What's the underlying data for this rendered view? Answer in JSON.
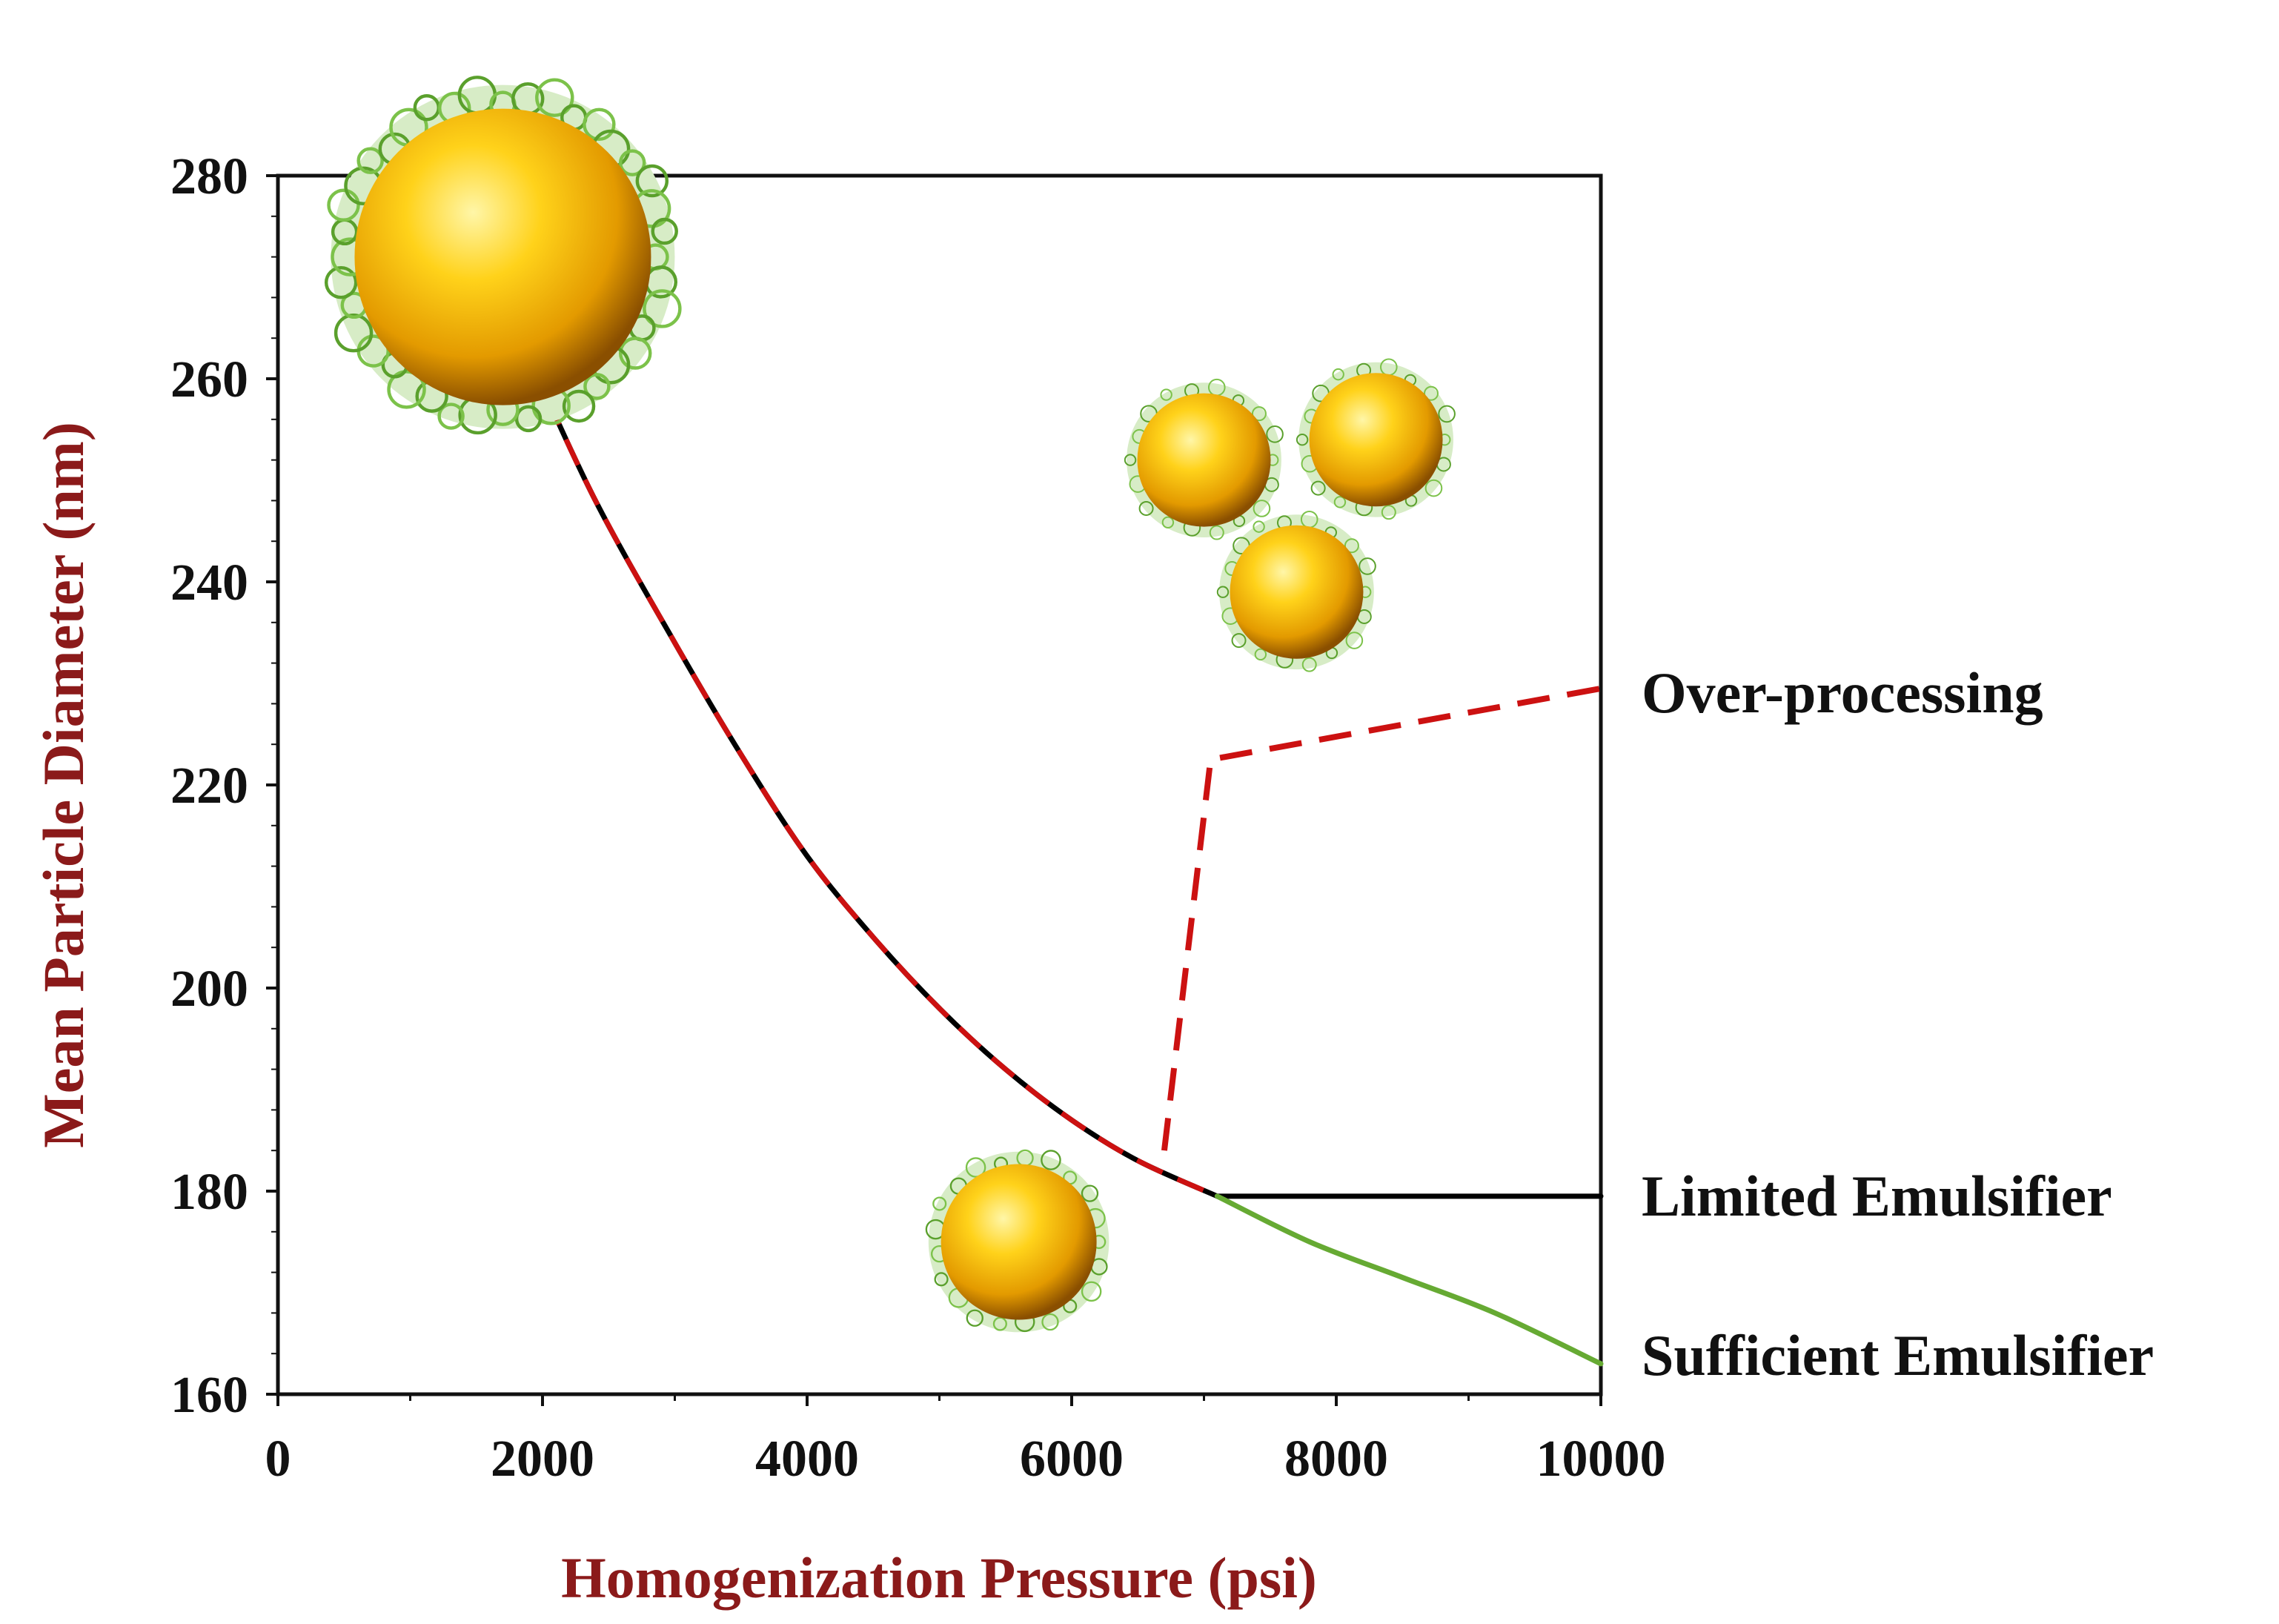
{
  "chart_data": {
    "type": "line",
    "title": "",
    "xlabel": "Homogenization Pressure (psi)",
    "ylabel": "Mean Particle Diameter (nm)",
    "xlim": [
      0,
      10000
    ],
    "ylim": [
      160,
      280
    ],
    "xticks": [
      0,
      2000,
      4000,
      6000,
      8000,
      10000
    ],
    "yticks": [
      160,
      180,
      200,
      220,
      240,
      260,
      280
    ],
    "grid": false,
    "legend": "none",
    "series": [
      {
        "color": "#000000",
        "overlay_color": "#cc1111",
        "style": "solid-with-red-dashes",
        "x": [
          1900,
          2400,
          3000,
          3500,
          4000,
          4500,
          5000,
          5500,
          6000,
          6500,
          7100
        ],
        "y": [
          262,
          248,
          234,
          223,
          213,
          205,
          198,
          192,
          187,
          183,
          179.5
        ]
      },
      {
        "color": "#000000",
        "style": "solid",
        "x": [
          7100,
          10000
        ],
        "y": [
          179.5,
          179.5
        ]
      },
      {
        "color": "#66aa33",
        "style": "solid",
        "x": [
          7100,
          7800,
          8500,
          9200,
          10000
        ],
        "y": [
          179.5,
          175,
          171.5,
          168,
          163
        ]
      },
      {
        "color": "#cc1111",
        "style": "dashed",
        "x": [
          6700,
          7050,
          10000
        ],
        "y": [
          184,
          222.5,
          229.5
        ]
      }
    ],
    "annotations": [
      {
        "text": "Over-processing",
        "x": 10000,
        "y": 229.5
      },
      {
        "text": "Limited Emulsifier",
        "x": 10000,
        "y": 179.5
      },
      {
        "text": "Sufficient Emulsifier",
        "x": 10000,
        "y": 163
      }
    ]
  },
  "colors": {
    "particle_core": "#f5b800",
    "particle_shell": "#6bb43a",
    "axis_title": "#8b1a1a"
  },
  "illustrations": [
    {
      "icon": "large-particle-icon",
      "x": 1700,
      "y": 272,
      "size": "large"
    },
    {
      "icon": "cluster-particle-icon",
      "x": 7900,
      "y": 249,
      "size": "small",
      "count": 3
    },
    {
      "icon": "single-particle-icon",
      "x": 5600,
      "y": 175,
      "size": "small"
    }
  ]
}
